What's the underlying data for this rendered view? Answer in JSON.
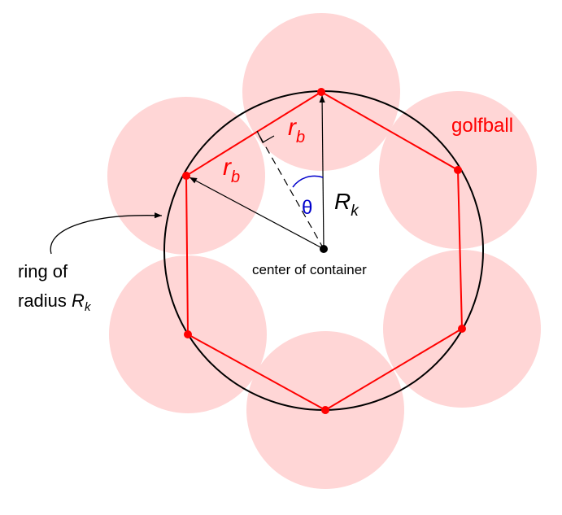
{
  "diagram": {
    "golfball_label": "golfball",
    "center_label": "center of container",
    "ring_label_line1": "ring of",
    "ring_label_line2_prefix": "radius ",
    "symbols": {
      "r": "r",
      "b": "b",
      "R": "R",
      "k": "k",
      "theta": "θ"
    },
    "ball_count": 6
  },
  "colors": {
    "ball_fill": "#ffd6d6",
    "polygon": "#ff0000",
    "ring": "#000000",
    "theta": "#0000cc"
  }
}
